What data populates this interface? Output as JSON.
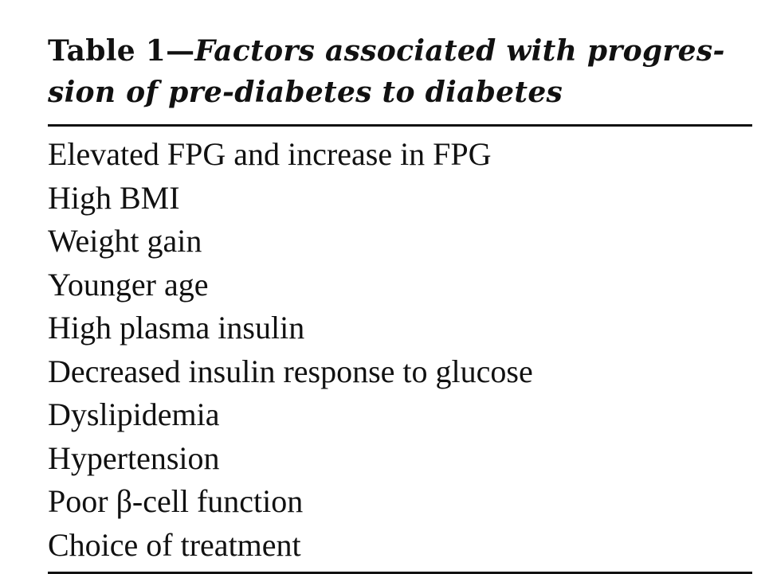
{
  "table": {
    "label": "Table 1—",
    "title": "Factors associated with progres-sion of pre-diabetes to diabetes",
    "title_line1": "Factors associated with progres-",
    "title_line2": "sion of pre-diabetes to diabetes",
    "rows": [
      "Elevated FPG and increase in FPG",
      "High BMI",
      "Weight gain",
      "Younger age",
      "High plasma insulin",
      "Decreased insulin response to glucose",
      "Dyslipidemia",
      "Hypertension",
      "Poor β-cell function",
      "Choice of treatment"
    ]
  }
}
